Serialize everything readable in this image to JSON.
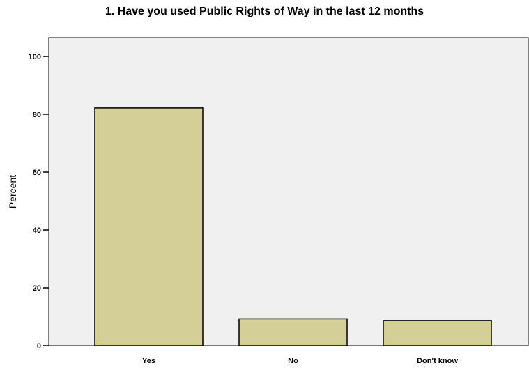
{
  "chart_data": {
    "type": "bar",
    "title": "1. Have you used Public Rights of Way in the last 12 months",
    "xlabel": "",
    "ylabel": "Percent",
    "categories": [
      "Yes",
      "No",
      "Don't know"
    ],
    "values": [
      82.2,
      9.3,
      8.7
    ],
    "ylim": [
      0,
      100
    ],
    "yticks": [
      "0",
      "20",
      "40",
      "60",
      "80",
      "100"
    ],
    "grid": false,
    "colors": {
      "bar_fill": "#d4ce97",
      "bar_stroke": "#000000",
      "plot_bg": "#f0f0f0"
    }
  }
}
